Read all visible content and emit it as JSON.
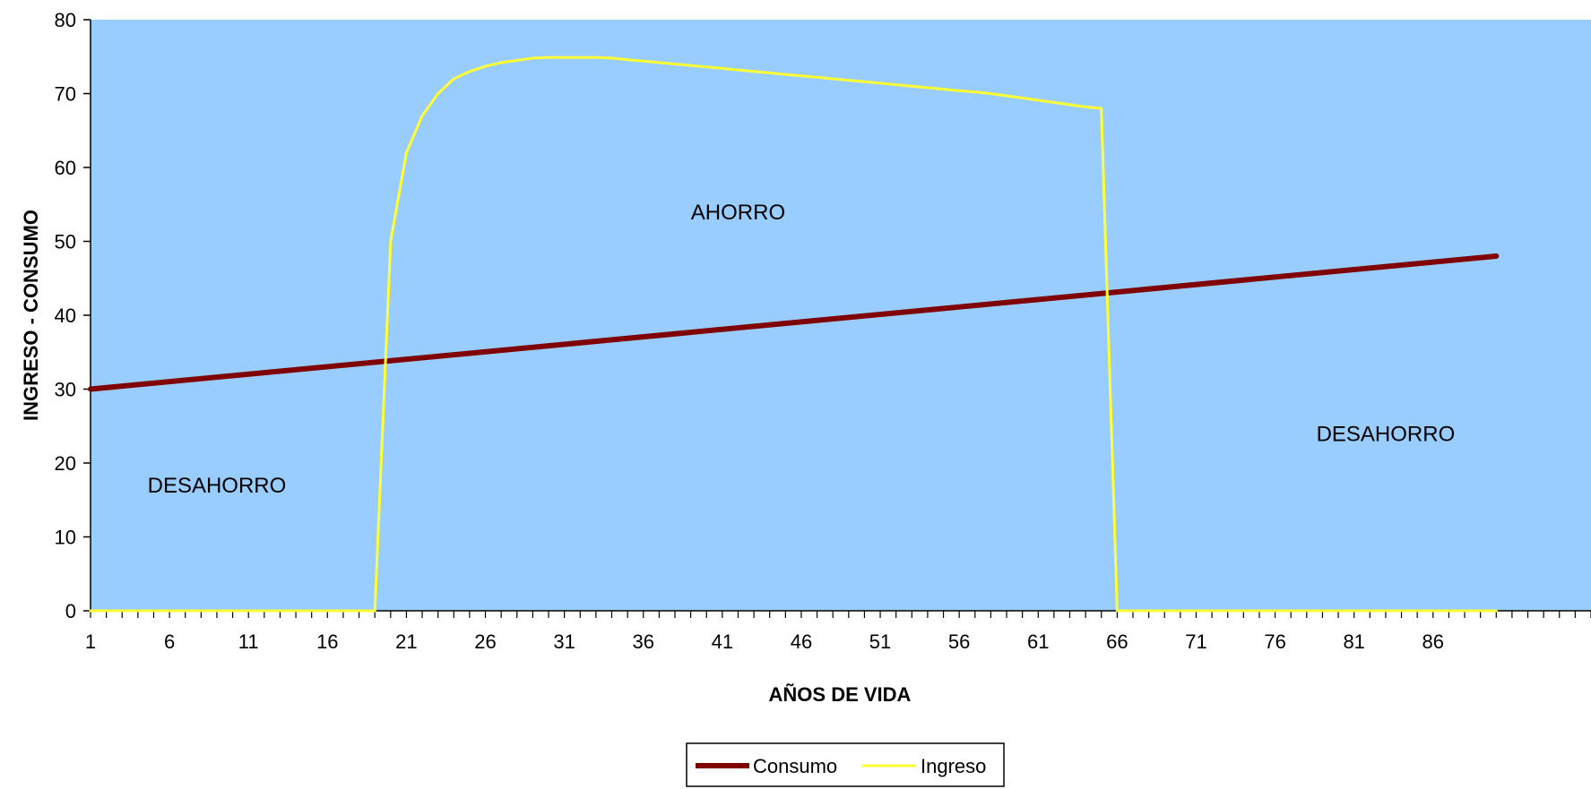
{
  "chart_data": {
    "type": "line",
    "title": "",
    "xlabel": "AÑOS DE VIDA",
    "ylabel": "INGRESO - CONSUMO",
    "ylim": [
      0,
      80
    ],
    "yticks": [
      0,
      10,
      20,
      30,
      40,
      50,
      60,
      70,
      80
    ],
    "xlim": [
      1,
      96
    ],
    "xticks": [
      1,
      6,
      11,
      16,
      21,
      26,
      31,
      36,
      41,
      46,
      51,
      56,
      61,
      66,
      71,
      76,
      81,
      86
    ],
    "grid": false,
    "legend_placement": "bottom",
    "plot_background": "#99ccff",
    "annotations": [
      {
        "text": "DESAHORRO",
        "x": 9,
        "y": 16
      },
      {
        "text": "AHORRO",
        "x": 42,
        "y": 53
      },
      {
        "text": "DESAHORRO",
        "x": 83,
        "y": 23
      }
    ],
    "series": [
      {
        "name": "Consumo",
        "color": "#800000",
        "x": [
          1,
          90
        ],
        "y": [
          30,
          48
        ]
      },
      {
        "name": "Ingreso",
        "color": "#ffff33",
        "x": [
          1,
          19,
          20,
          21,
          22,
          23,
          24,
          25,
          26,
          27,
          28,
          29,
          30,
          31,
          32,
          33,
          34,
          35,
          36,
          37,
          38,
          39,
          40,
          41,
          42,
          43,
          44,
          45,
          46,
          47,
          48,
          49,
          50,
          51,
          52,
          53,
          54,
          55,
          56,
          57,
          58,
          59,
          60,
          61,
          62,
          63,
          64,
          65,
          66,
          90
        ],
        "y": [
          0,
          0,
          50,
          62,
          67,
          70,
          72,
          73,
          73.7,
          74.2,
          74.5,
          74.8,
          74.9,
          74.9,
          74.9,
          74.9,
          74.8,
          74.6,
          74.4,
          74.2,
          74.0,
          73.8,
          73.6,
          73.4,
          73.2,
          73.0,
          72.8,
          72.6,
          72.4,
          72.2,
          72.0,
          71.8,
          71.6,
          71.4,
          71.2,
          71.0,
          70.8,
          70.6,
          70.4,
          70.2,
          70.0,
          69.7,
          69.4,
          69.1,
          68.8,
          68.5,
          68.2,
          68.0,
          0,
          0
        ]
      }
    ]
  }
}
